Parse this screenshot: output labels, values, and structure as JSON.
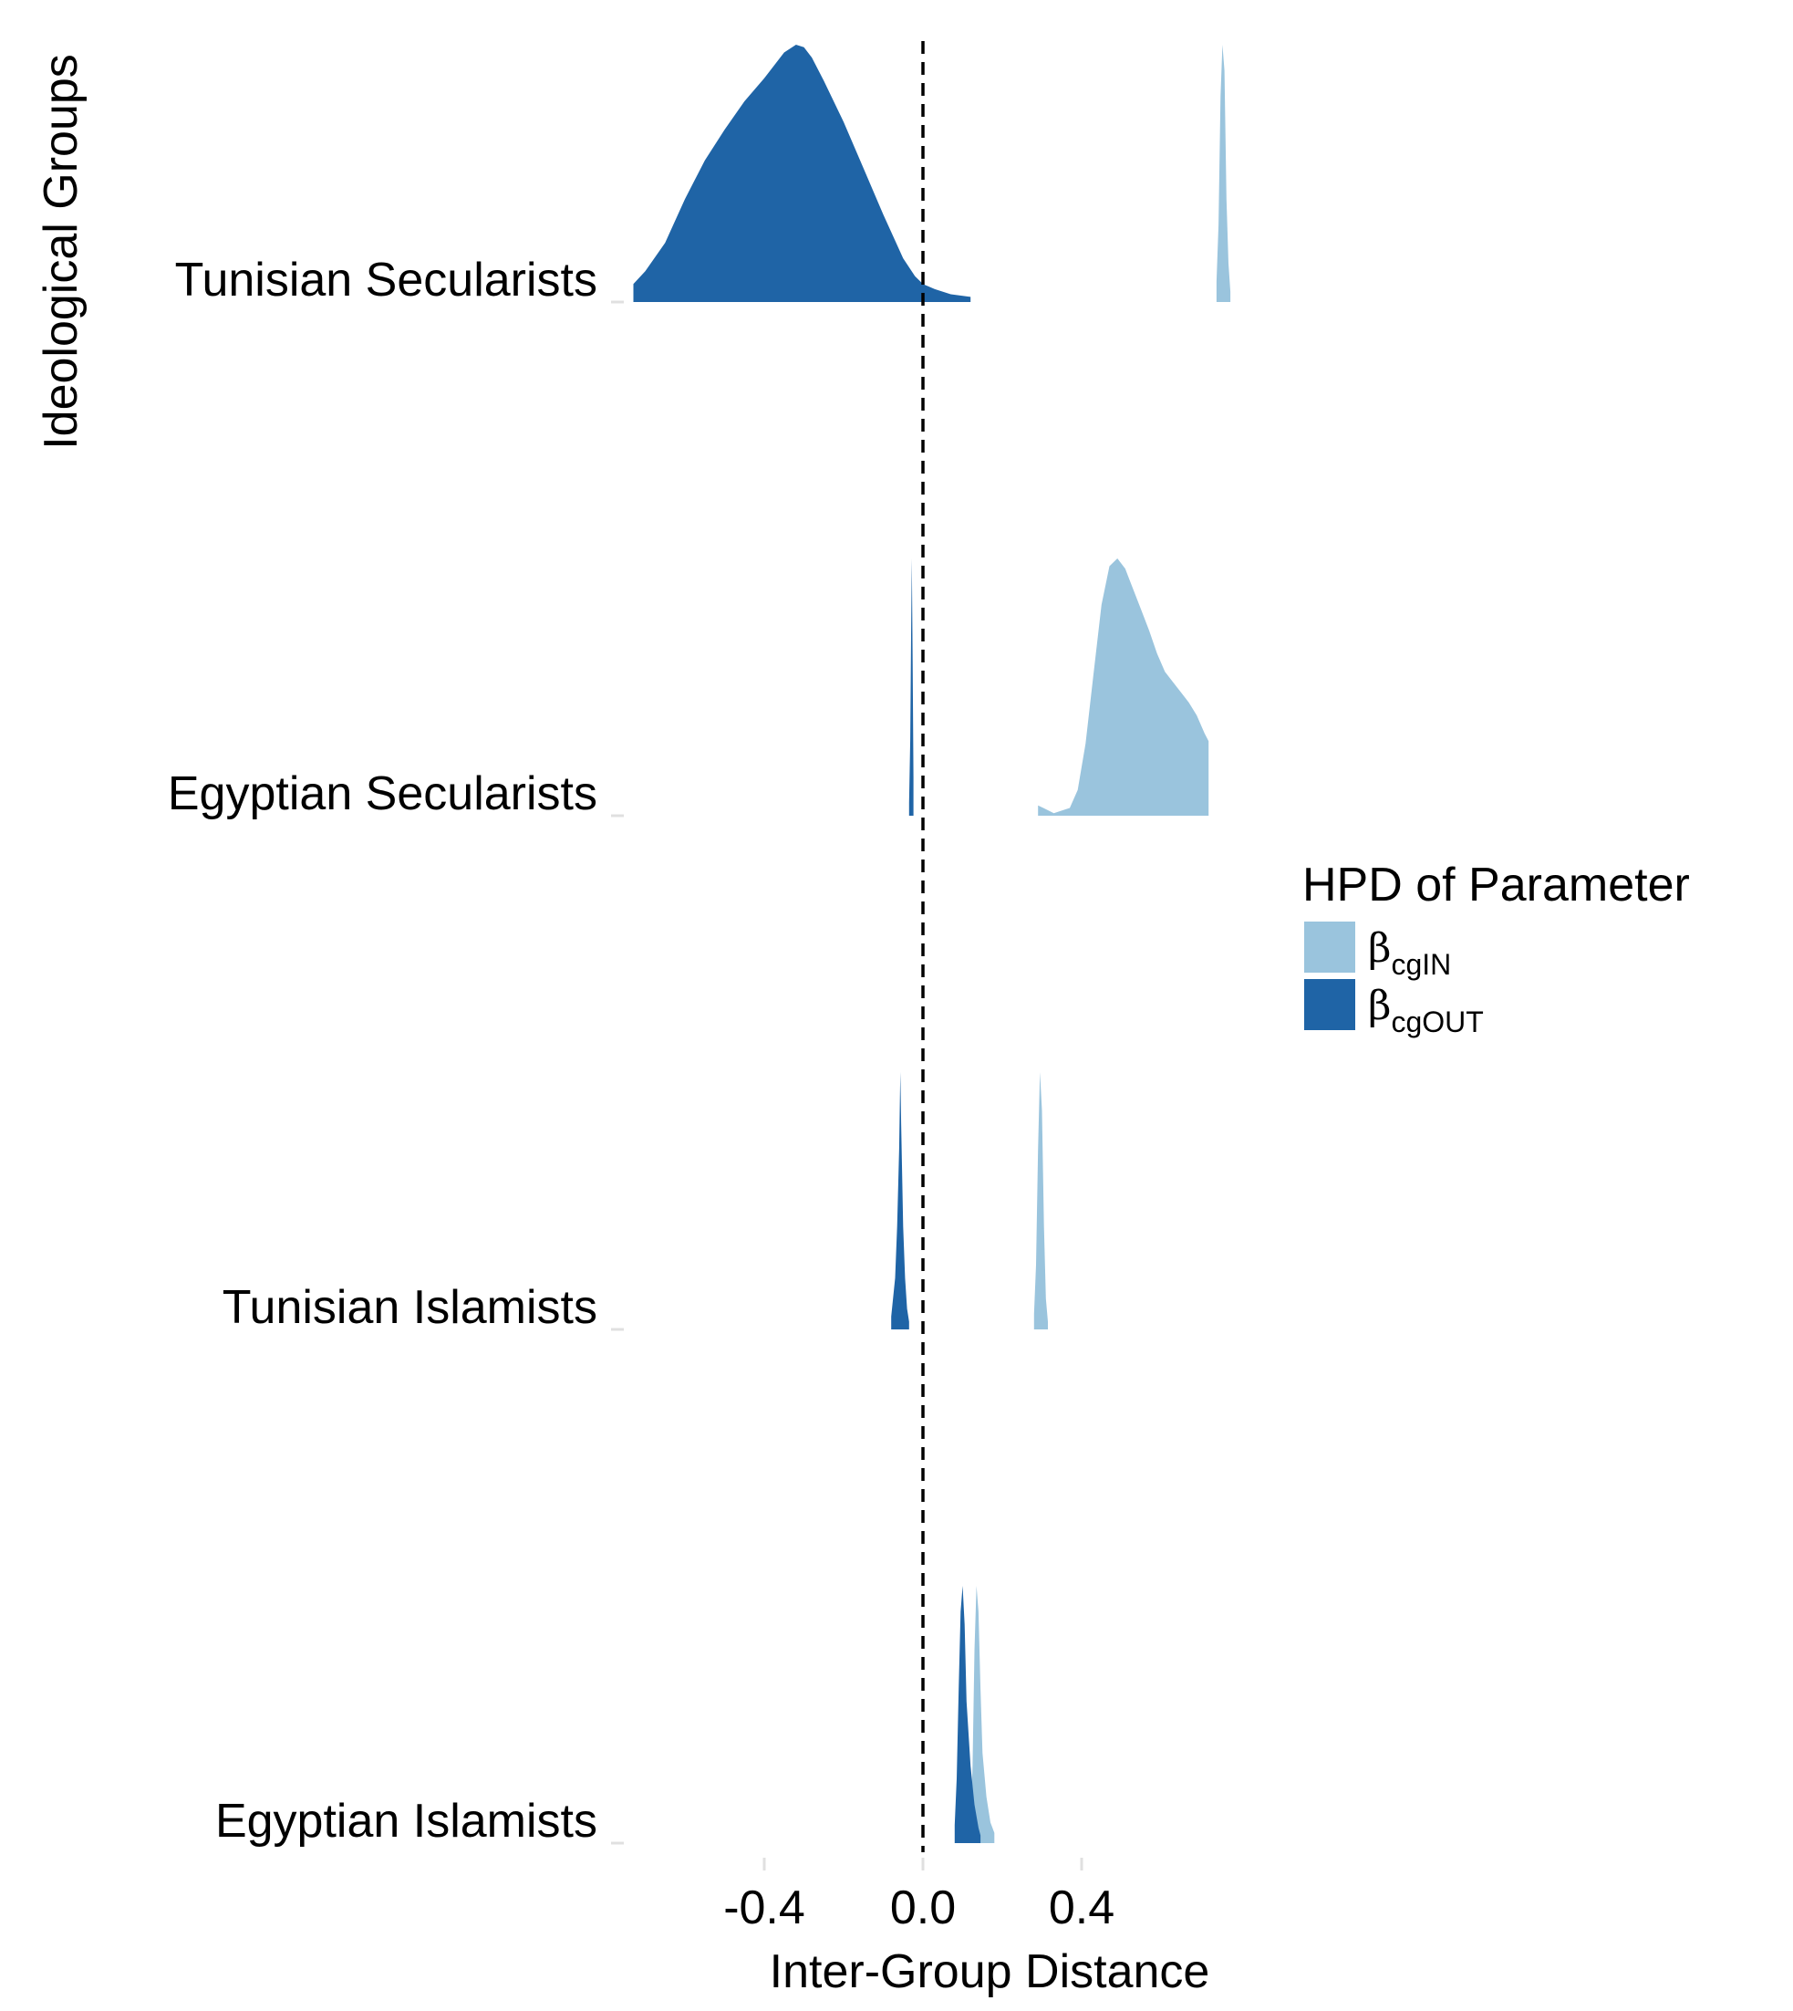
{
  "chart_data": {
    "type": "area",
    "subtype": "ridgeline-density",
    "title": "",
    "xlabel": "Inter-Group Distance",
    "ylabel": "Ideological Groups",
    "xlim": [
      -0.73,
      1.2
    ],
    "x_ticks": [
      -0.4,
      0.0,
      0.4
    ],
    "x_tick_labels": [
      "-0.4",
      "0.0",
      "0.4"
    ],
    "reference_line": {
      "x": 0.0,
      "style": "dashed"
    },
    "grid": false,
    "categories": [
      "Egyptian Islamists",
      "Tunisian Islamists",
      "Egyptian Secularists",
      "Tunisian Secularists"
    ],
    "legend": {
      "title": "HPD of Parameter",
      "position": "right",
      "items": [
        {
          "symbol": "β",
          "sub": "cgIN",
          "color": "#9ac4dd"
        },
        {
          "symbol": "β",
          "sub": "cgOUT",
          "color": "#1f64a6"
        }
      ]
    },
    "series": [
      {
        "name": "βcgIN",
        "color": "#9ac4dd",
        "groups": [
          {
            "category": "Tunisian Secularists",
            "x": [
              0.74,
              0.745,
              0.75,
              0.755,
              0.76,
              0.765,
              0.77,
              0.775
            ],
            "density": [
              0.08,
              0.3,
              0.8,
              1.0,
              0.9,
              0.4,
              0.15,
              0.04
            ]
          },
          {
            "category": "Egyptian Secularists",
            "x": [
              0.29,
              0.33,
              0.37,
              0.39,
              0.41,
              0.43,
              0.45,
              0.47,
              0.49,
              0.51,
              0.53,
              0.55,
              0.57,
              0.59,
              0.61,
              0.63,
              0.65,
              0.67,
              0.69,
              0.71,
              0.72
            ],
            "density": [
              0.04,
              0.01,
              0.03,
              0.1,
              0.28,
              0.55,
              0.82,
              0.97,
              1.0,
              0.96,
              0.88,
              0.8,
              0.72,
              0.63,
              0.56,
              0.52,
              0.48,
              0.44,
              0.39,
              0.32,
              0.29
            ]
          },
          {
            "category": "Tunisian Islamists",
            "x": [
              0.28,
              0.285,
              0.29,
              0.295,
              0.3,
              0.305,
              0.31,
              0.315
            ],
            "density": [
              0.06,
              0.25,
              0.7,
              1.0,
              0.85,
              0.4,
              0.12,
              0.03
            ]
          },
          {
            "category": "Egyptian Islamists",
            "x": [
              0.12,
              0.125,
              0.13,
              0.135,
              0.14,
              0.145,
              0.15,
              0.16,
              0.17,
              0.18
            ],
            "density": [
              0.08,
              0.3,
              0.75,
              1.0,
              0.9,
              0.6,
              0.35,
              0.18,
              0.08,
              0.04
            ]
          }
        ]
      },
      {
        "name": "βcgOUT",
        "color": "#1f64a6",
        "groups": [
          {
            "category": "Tunisian Secularists",
            "x": [
              -0.73,
              -0.7,
              -0.65,
              -0.6,
              -0.55,
              -0.5,
              -0.45,
              -0.4,
              -0.35,
              -0.32,
              -0.3,
              -0.28,
              -0.25,
              -0.2,
              -0.15,
              -0.1,
              -0.05,
              -0.02,
              0.0,
              0.03,
              0.07,
              0.12
            ],
            "density": [
              0.07,
              0.12,
              0.23,
              0.4,
              0.55,
              0.67,
              0.78,
              0.87,
              0.97,
              1.0,
              0.99,
              0.95,
              0.86,
              0.7,
              0.52,
              0.34,
              0.17,
              0.1,
              0.07,
              0.05,
              0.03,
              0.02
            ]
          },
          {
            "category": "Egyptian Secularists",
            "x": [
              -0.035,
              -0.032,
              -0.03,
              -0.028,
              -0.026,
              -0.024
            ],
            "density": [
              0.05,
              0.3,
              0.7,
              1.0,
              0.6,
              0.15
            ]
          },
          {
            "category": "Tunisian Islamists",
            "x": [
              -0.08,
              -0.07,
              -0.065,
              -0.06,
              -0.057,
              -0.055,
              -0.05,
              -0.045,
              -0.04,
              -0.035
            ],
            "density": [
              0.05,
              0.2,
              0.4,
              0.7,
              1.0,
              0.8,
              0.4,
              0.2,
              0.08,
              0.03
            ]
          },
          {
            "category": "Egyptian Islamists",
            "x": [
              0.08,
              0.085,
              0.09,
              0.095,
              0.1,
              0.105,
              0.11,
              0.12,
              0.13,
              0.14,
              0.145
            ],
            "density": [
              0.07,
              0.25,
              0.6,
              0.9,
              1.0,
              0.85,
              0.55,
              0.3,
              0.15,
              0.06,
              0.03
            ]
          }
        ]
      }
    ]
  }
}
